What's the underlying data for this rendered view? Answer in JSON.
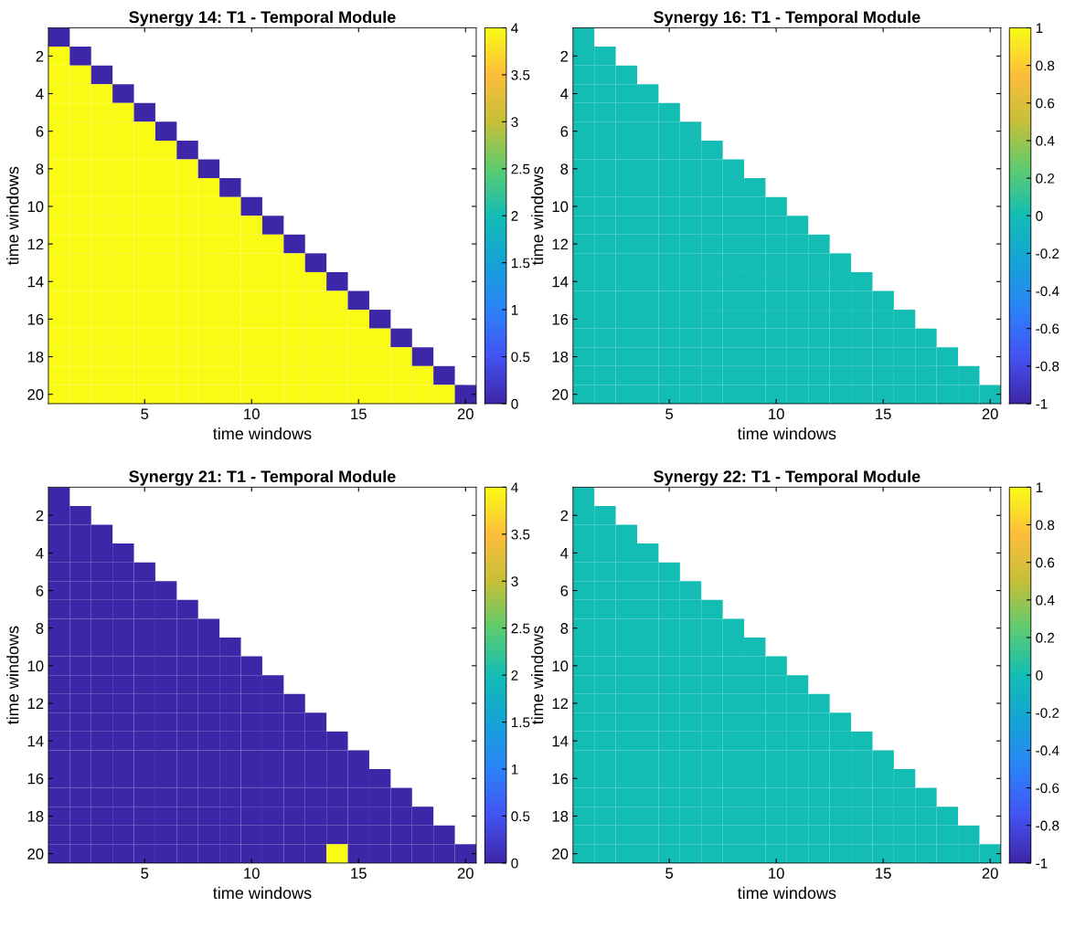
{
  "chart_data": [
    {
      "type": "heatmap",
      "title": "Synergy 14: T1 - Temporal Module",
      "xlabel": "time windows",
      "ylabel": "time windows",
      "categories": [
        null,
        null,
        null,
        null,
        "5",
        null,
        null,
        null,
        null,
        "10",
        null,
        null,
        null,
        null,
        "15",
        null,
        null,
        null,
        null,
        "20"
      ],
      "y_categories": [
        null,
        "2",
        null,
        "4",
        null,
        "6",
        null,
        "8",
        null,
        "10",
        null,
        "12",
        null,
        "14",
        null,
        "16",
        null,
        "18",
        null,
        "20"
      ],
      "clim": [
        0,
        4
      ],
      "cticks": [
        0,
        0.5,
        1,
        1.5,
        2,
        2.5,
        3,
        3.5,
        4
      ],
      "cells": [
        [
          0,
          null,
          null,
          null,
          null,
          null,
          null,
          null,
          null,
          null,
          null,
          null,
          null,
          null,
          null,
          null,
          null,
          null,
          null,
          null
        ],
        [
          4,
          0,
          null,
          null,
          null,
          null,
          null,
          null,
          null,
          null,
          null,
          null,
          null,
          null,
          null,
          null,
          null,
          null,
          null,
          null
        ],
        [
          4,
          4,
          0,
          null,
          null,
          null,
          null,
          null,
          null,
          null,
          null,
          null,
          null,
          null,
          null,
          null,
          null,
          null,
          null,
          null
        ],
        [
          4,
          4,
          4,
          0,
          null,
          null,
          null,
          null,
          null,
          null,
          null,
          null,
          null,
          null,
          null,
          null,
          null,
          null,
          null,
          null
        ],
        [
          4,
          4,
          4,
          4,
          0,
          null,
          null,
          null,
          null,
          null,
          null,
          null,
          null,
          null,
          null,
          null,
          null,
          null,
          null,
          null
        ],
        [
          4,
          4,
          4,
          4,
          4,
          0,
          null,
          null,
          null,
          null,
          null,
          null,
          null,
          null,
          null,
          null,
          null,
          null,
          null,
          null
        ],
        [
          4,
          4,
          4,
          4,
          4,
          4,
          0,
          null,
          null,
          null,
          null,
          null,
          null,
          null,
          null,
          null,
          null,
          null,
          null,
          null
        ],
        [
          4,
          4,
          4,
          4,
          4,
          4,
          4,
          0,
          null,
          null,
          null,
          null,
          null,
          null,
          null,
          null,
          null,
          null,
          null,
          null
        ],
        [
          4,
          4,
          4,
          4,
          4,
          4,
          4,
          4,
          0,
          null,
          null,
          null,
          null,
          null,
          null,
          null,
          null,
          null,
          null,
          null
        ],
        [
          4,
          4,
          4,
          4,
          4,
          4,
          4,
          4,
          4,
          0,
          null,
          null,
          null,
          null,
          null,
          null,
          null,
          null,
          null,
          null
        ],
        [
          4,
          4,
          4,
          4,
          4,
          4,
          4,
          4,
          4,
          4,
          0,
          null,
          null,
          null,
          null,
          null,
          null,
          null,
          null,
          null
        ],
        [
          4,
          4,
          4,
          4,
          4,
          4,
          4,
          4,
          4,
          4,
          4,
          0,
          null,
          null,
          null,
          null,
          null,
          null,
          null,
          null
        ],
        [
          4,
          4,
          4,
          4,
          4,
          4,
          4,
          4,
          4,
          4,
          4,
          4,
          0,
          null,
          null,
          null,
          null,
          null,
          null,
          null
        ],
        [
          4,
          4,
          4,
          4,
          4,
          4,
          4,
          4,
          4,
          4,
          4,
          4,
          4,
          0,
          null,
          null,
          null,
          null,
          null,
          null
        ],
        [
          4,
          4,
          4,
          4,
          4,
          4,
          4,
          4,
          4,
          4,
          4,
          4,
          4,
          4,
          0,
          null,
          null,
          null,
          null,
          null
        ],
        [
          4,
          4,
          4,
          4,
          4,
          4,
          4,
          4,
          4,
          4,
          4,
          4,
          4,
          4,
          4,
          0,
          null,
          null,
          null,
          null
        ],
        [
          4,
          4,
          4,
          4,
          4,
          4,
          4,
          4,
          4,
          4,
          4,
          4,
          4,
          4,
          4,
          4,
          0,
          null,
          null,
          null
        ],
        [
          4,
          4,
          4,
          4,
          4,
          4,
          4,
          4,
          4,
          4,
          4,
          4,
          4,
          4,
          4,
          4,
          4,
          0,
          null,
          null
        ],
        [
          4,
          4,
          4,
          4,
          4,
          4,
          4,
          4,
          4,
          4,
          4,
          4,
          4,
          4,
          4,
          4,
          4,
          4,
          0,
          null
        ],
        [
          4,
          4,
          4,
          4,
          4,
          4,
          4,
          4,
          4,
          4,
          4,
          4,
          4,
          4,
          4,
          4,
          4,
          4,
          4,
          0
        ]
      ]
    },
    {
      "type": "heatmap",
      "title": "Synergy 16: T1 - Temporal Module",
      "xlabel": "time windows",
      "ylabel": "time windows",
      "categories": [
        null,
        null,
        null,
        null,
        "5",
        null,
        null,
        null,
        null,
        "10",
        null,
        null,
        null,
        null,
        "15",
        null,
        null,
        null,
        null,
        "20"
      ],
      "y_categories": [
        null,
        "2",
        null,
        "4",
        null,
        "6",
        null,
        "8",
        null,
        "10",
        null,
        "12",
        null,
        "14",
        null,
        "16",
        null,
        "18",
        null,
        "20"
      ],
      "clim": [
        -1,
        1
      ],
      "cticks": [
        -1,
        -0.8,
        -0.6,
        -0.4,
        -0.2,
        0,
        0.2,
        0.4,
        0.6,
        0.8,
        1
      ],
      "cells": [
        [
          0,
          null,
          null,
          null,
          null,
          null,
          null,
          null,
          null,
          null,
          null,
          null,
          null,
          null,
          null,
          null,
          null,
          null,
          null,
          null
        ],
        [
          0,
          0,
          null,
          null,
          null,
          null,
          null,
          null,
          null,
          null,
          null,
          null,
          null,
          null,
          null,
          null,
          null,
          null,
          null,
          null
        ],
        [
          0,
          0,
          0,
          null,
          null,
          null,
          null,
          null,
          null,
          null,
          null,
          null,
          null,
          null,
          null,
          null,
          null,
          null,
          null,
          null
        ],
        [
          0,
          0,
          0,
          0,
          null,
          null,
          null,
          null,
          null,
          null,
          null,
          null,
          null,
          null,
          null,
          null,
          null,
          null,
          null,
          null
        ],
        [
          0,
          0,
          0,
          0,
          0,
          null,
          null,
          null,
          null,
          null,
          null,
          null,
          null,
          null,
          null,
          null,
          null,
          null,
          null,
          null
        ],
        [
          0,
          0,
          0,
          0,
          0,
          0,
          null,
          null,
          null,
          null,
          null,
          null,
          null,
          null,
          null,
          null,
          null,
          null,
          null,
          null
        ],
        [
          0,
          0,
          0,
          0,
          0,
          0,
          0,
          null,
          null,
          null,
          null,
          null,
          null,
          null,
          null,
          null,
          null,
          null,
          null,
          null
        ],
        [
          0,
          0,
          0,
          0,
          0,
          0,
          0,
          0,
          null,
          null,
          null,
          null,
          null,
          null,
          null,
          null,
          null,
          null,
          null,
          null
        ],
        [
          0,
          0,
          0,
          0,
          0,
          0,
          0,
          0,
          0,
          null,
          null,
          null,
          null,
          null,
          null,
          null,
          null,
          null,
          null,
          null
        ],
        [
          0,
          0,
          0,
          0,
          0,
          0,
          0,
          0,
          0,
          0,
          null,
          null,
          null,
          null,
          null,
          null,
          null,
          null,
          null,
          null
        ],
        [
          0,
          0,
          0,
          0,
          0,
          0,
          0,
          0,
          0,
          0,
          0,
          null,
          null,
          null,
          null,
          null,
          null,
          null,
          null,
          null
        ],
        [
          0,
          0,
          0,
          0,
          0,
          0,
          0,
          0,
          0,
          0,
          0,
          0,
          null,
          null,
          null,
          null,
          null,
          null,
          null,
          null
        ],
        [
          0,
          0,
          0,
          0,
          0,
          0,
          0,
          0,
          0,
          0,
          0,
          0,
          0,
          null,
          null,
          null,
          null,
          null,
          null,
          null
        ],
        [
          0,
          0,
          0,
          0,
          0,
          0,
          0,
          0,
          0,
          0,
          0,
          0,
          0,
          0,
          null,
          null,
          null,
          null,
          null,
          null
        ],
        [
          0,
          0,
          0,
          0,
          0,
          0,
          0,
          0,
          0,
          0,
          0,
          0,
          0,
          0,
          0,
          null,
          null,
          null,
          null,
          null
        ],
        [
          0,
          0,
          0,
          0,
          0,
          0,
          0,
          0,
          0,
          0,
          0,
          0,
          0,
          0,
          0,
          0,
          null,
          null,
          null,
          null
        ],
        [
          0,
          0,
          0,
          0,
          0,
          0,
          0,
          0,
          0,
          0,
          0,
          0,
          0,
          0,
          0,
          0,
          0,
          null,
          null,
          null
        ],
        [
          0,
          0,
          0,
          0,
          0,
          0,
          0,
          0,
          0,
          0,
          0,
          0,
          0,
          0,
          0,
          0,
          0,
          0,
          null,
          null
        ],
        [
          0,
          0,
          0,
          0,
          0,
          0,
          0,
          0,
          0,
          0,
          0,
          0,
          0,
          0,
          0,
          0,
          0,
          0,
          0,
          null
        ],
        [
          0,
          0,
          0,
          0,
          0,
          0,
          0,
          0,
          0,
          0,
          0,
          0,
          0,
          0,
          0,
          0,
          0,
          0,
          0,
          0
        ]
      ]
    },
    {
      "type": "heatmap",
      "title": "Synergy 21: T1 - Temporal Module",
      "xlabel": "time windows",
      "ylabel": "time windows",
      "categories": [
        null,
        null,
        null,
        null,
        "5",
        null,
        null,
        null,
        null,
        "10",
        null,
        null,
        null,
        null,
        "15",
        null,
        null,
        null,
        null,
        "20"
      ],
      "y_categories": [
        null,
        "2",
        null,
        "4",
        null,
        "6",
        null,
        "8",
        null,
        "10",
        null,
        "12",
        null,
        "14",
        null,
        "16",
        null,
        "18",
        null,
        "20"
      ],
      "clim": [
        0,
        4
      ],
      "cticks": [
        0,
        0.5,
        1,
        1.5,
        2,
        2.5,
        3,
        3.5,
        4
      ],
      "cells": [
        [
          0,
          null,
          null,
          null,
          null,
          null,
          null,
          null,
          null,
          null,
          null,
          null,
          null,
          null,
          null,
          null,
          null,
          null,
          null,
          null
        ],
        [
          0,
          0,
          null,
          null,
          null,
          null,
          null,
          null,
          null,
          null,
          null,
          null,
          null,
          null,
          null,
          null,
          null,
          null,
          null,
          null
        ],
        [
          0,
          0,
          0,
          null,
          null,
          null,
          null,
          null,
          null,
          null,
          null,
          null,
          null,
          null,
          null,
          null,
          null,
          null,
          null,
          null
        ],
        [
          0,
          0,
          0,
          0,
          null,
          null,
          null,
          null,
          null,
          null,
          null,
          null,
          null,
          null,
          null,
          null,
          null,
          null,
          null,
          null
        ],
        [
          0,
          0,
          0,
          0,
          0,
          null,
          null,
          null,
          null,
          null,
          null,
          null,
          null,
          null,
          null,
          null,
          null,
          null,
          null,
          null
        ],
        [
          0,
          0,
          0,
          0,
          0,
          0,
          null,
          null,
          null,
          null,
          null,
          null,
          null,
          null,
          null,
          null,
          null,
          null,
          null,
          null
        ],
        [
          0,
          0,
          0,
          0,
          0,
          0,
          0,
          null,
          null,
          null,
          null,
          null,
          null,
          null,
          null,
          null,
          null,
          null,
          null,
          null
        ],
        [
          0,
          0,
          0,
          0,
          0,
          0,
          0,
          0,
          null,
          null,
          null,
          null,
          null,
          null,
          null,
          null,
          null,
          null,
          null,
          null
        ],
        [
          0,
          0,
          0,
          0,
          0,
          0,
          0,
          0,
          0,
          null,
          null,
          null,
          null,
          null,
          null,
          null,
          null,
          null,
          null,
          null
        ],
        [
          0,
          0,
          0,
          0,
          0,
          0,
          0,
          0,
          0,
          0,
          null,
          null,
          null,
          null,
          null,
          null,
          null,
          null,
          null,
          null
        ],
        [
          0,
          0,
          0,
          0,
          0,
          0,
          0,
          0,
          0,
          0,
          0,
          null,
          null,
          null,
          null,
          null,
          null,
          null,
          null,
          null
        ],
        [
          0,
          0,
          0,
          0,
          0,
          0,
          0,
          0,
          0,
          0,
          0,
          0,
          null,
          null,
          null,
          null,
          null,
          null,
          null,
          null
        ],
        [
          0,
          0,
          0,
          0,
          0,
          0,
          0,
          0,
          0,
          0,
          0,
          0,
          0,
          null,
          null,
          null,
          null,
          null,
          null,
          null
        ],
        [
          0,
          0,
          0,
          0,
          0,
          0,
          0,
          0,
          0,
          0,
          0,
          0,
          0,
          0,
          null,
          null,
          null,
          null,
          null,
          null
        ],
        [
          0,
          0,
          0,
          0,
          0,
          0,
          0,
          0,
          0,
          0,
          0,
          0,
          0,
          0,
          0,
          null,
          null,
          null,
          null,
          null
        ],
        [
          0,
          0,
          0,
          0,
          0,
          0,
          0,
          0,
          0,
          0,
          0,
          0,
          0,
          0,
          0,
          0,
          null,
          null,
          null,
          null
        ],
        [
          0,
          0,
          0,
          0,
          0,
          0,
          0,
          0,
          0,
          0,
          0,
          0,
          0,
          0,
          0,
          0,
          0,
          null,
          null,
          null
        ],
        [
          0,
          0,
          0,
          0,
          0,
          0,
          0,
          0,
          0,
          0,
          0,
          0,
          0,
          0,
          0,
          0,
          0,
          0,
          null,
          null
        ],
        [
          0,
          0,
          0,
          0,
          0,
          0,
          0,
          0,
          0,
          0,
          0,
          0,
          0,
          0,
          0,
          0,
          0,
          0,
          0,
          null
        ],
        [
          0,
          0,
          0,
          0,
          0,
          0,
          0,
          0,
          0,
          0,
          0,
          0,
          0,
          4,
          0,
          0,
          0,
          0,
          0,
          0
        ]
      ]
    },
    {
      "type": "heatmap",
      "title": "Synergy 22: T1 - Temporal Module",
      "xlabel": "time windows",
      "ylabel": "time windows",
      "categories": [
        null,
        null,
        null,
        null,
        "5",
        null,
        null,
        null,
        null,
        "10",
        null,
        null,
        null,
        null,
        "15",
        null,
        null,
        null,
        null,
        "20"
      ],
      "y_categories": [
        null,
        "2",
        null,
        "4",
        null,
        "6",
        null,
        "8",
        null,
        "10",
        null,
        "12",
        null,
        "14",
        null,
        "16",
        null,
        "18",
        null,
        "20"
      ],
      "clim": [
        -1,
        1
      ],
      "cticks": [
        -1,
        -0.8,
        -0.6,
        -0.4,
        -0.2,
        0,
        0.2,
        0.4,
        0.6,
        0.8,
        1
      ],
      "cells": [
        [
          0,
          null,
          null,
          null,
          null,
          null,
          null,
          null,
          null,
          null,
          null,
          null,
          null,
          null,
          null,
          null,
          null,
          null,
          null,
          null
        ],
        [
          0,
          0,
          null,
          null,
          null,
          null,
          null,
          null,
          null,
          null,
          null,
          null,
          null,
          null,
          null,
          null,
          null,
          null,
          null,
          null
        ],
        [
          0,
          0,
          0,
          null,
          null,
          null,
          null,
          null,
          null,
          null,
          null,
          null,
          null,
          null,
          null,
          null,
          null,
          null,
          null,
          null
        ],
        [
          0,
          0,
          0,
          0,
          null,
          null,
          null,
          null,
          null,
          null,
          null,
          null,
          null,
          null,
          null,
          null,
          null,
          null,
          null,
          null
        ],
        [
          0,
          0,
          0,
          0,
          0,
          null,
          null,
          null,
          null,
          null,
          null,
          null,
          null,
          null,
          null,
          null,
          null,
          null,
          null,
          null
        ],
        [
          0,
          0,
          0,
          0,
          0,
          0,
          null,
          null,
          null,
          null,
          null,
          null,
          null,
          null,
          null,
          null,
          null,
          null,
          null,
          null
        ],
        [
          0,
          0,
          0,
          0,
          0,
          0,
          0,
          null,
          null,
          null,
          null,
          null,
          null,
          null,
          null,
          null,
          null,
          null,
          null,
          null
        ],
        [
          0,
          0,
          0,
          0,
          0,
          0,
          0,
          0,
          null,
          null,
          null,
          null,
          null,
          null,
          null,
          null,
          null,
          null,
          null,
          null
        ],
        [
          0,
          0,
          0,
          0,
          0,
          0,
          0,
          0,
          0,
          null,
          null,
          null,
          null,
          null,
          null,
          null,
          null,
          null,
          null,
          null
        ],
        [
          0,
          0,
          0,
          0,
          0,
          0,
          0,
          0,
          0,
          0,
          null,
          null,
          null,
          null,
          null,
          null,
          null,
          null,
          null,
          null
        ],
        [
          0,
          0,
          0,
          0,
          0,
          0,
          0,
          0,
          0,
          0,
          0,
          null,
          null,
          null,
          null,
          null,
          null,
          null,
          null,
          null
        ],
        [
          0,
          0,
          0,
          0,
          0,
          0,
          0,
          0,
          0,
          0,
          0,
          0,
          null,
          null,
          null,
          null,
          null,
          null,
          null,
          null
        ],
        [
          0,
          0,
          0,
          0,
          0,
          0,
          0,
          0,
          0,
          0,
          0,
          0,
          0,
          null,
          null,
          null,
          null,
          null,
          null,
          null
        ],
        [
          0,
          0,
          0,
          0,
          0,
          0,
          0,
          0,
          0,
          0,
          0,
          0,
          0,
          0,
          null,
          null,
          null,
          null,
          null,
          null
        ],
        [
          0,
          0,
          0,
          0,
          0,
          0,
          0,
          0,
          0,
          0,
          0,
          0,
          0,
          0,
          0,
          null,
          null,
          null,
          null,
          null
        ],
        [
          0,
          0,
          0,
          0,
          0,
          0,
          0,
          0,
          0,
          0,
          0,
          0,
          0,
          0,
          0,
          0,
          null,
          null,
          null,
          null
        ],
        [
          0,
          0,
          0,
          0,
          0,
          0,
          0,
          0,
          0,
          0,
          0,
          0,
          0,
          0,
          0,
          0,
          0,
          null,
          null,
          null
        ],
        [
          0,
          0,
          0,
          0,
          0,
          0,
          0,
          0,
          0,
          0,
          0,
          0,
          0,
          0,
          0,
          0,
          0,
          0,
          null,
          null
        ],
        [
          0,
          0,
          0,
          0,
          0,
          0,
          0,
          0,
          0,
          0,
          0,
          0,
          0,
          0,
          0,
          0,
          0,
          0,
          0,
          null
        ],
        [
          0,
          0,
          0,
          0,
          0,
          0,
          0,
          0,
          0,
          0,
          0,
          0,
          0,
          0,
          0,
          0,
          0,
          0,
          0,
          0
        ]
      ]
    }
  ]
}
